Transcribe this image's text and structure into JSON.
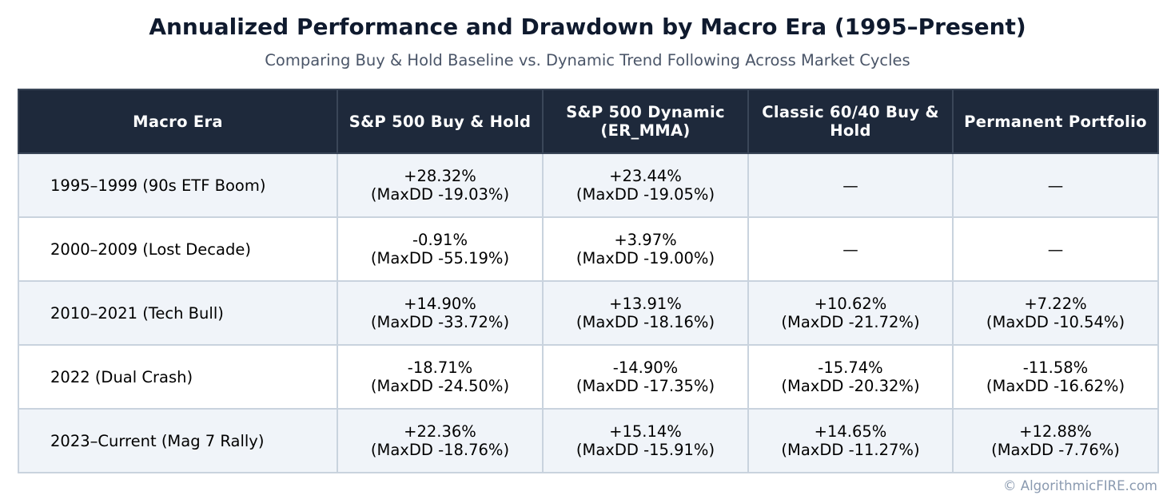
{
  "colors": {
    "header_bg": "#1e293b",
    "header_text": "#ffffff",
    "row_alt_bg": "#f0f4f9",
    "border": "#c9d3de",
    "title": "#0f1a2e",
    "subtitle": "#4a5568",
    "footer": "#8a9ab0"
  },
  "chart_data": {
    "type": "table",
    "title": "Annualized Performance and Drawdown by Macro Era (1995–Present)",
    "subtitle": "Comparing Buy & Hold Baseline vs. Dynamic Trend Following Across Market Cycles",
    "columns": [
      "Macro Era",
      "S&P 500 Buy & Hold",
      "S&P 500 Dynamic (ER_MMA)",
      "Classic 60/40 Buy & Hold",
      "Permanent Portfolio"
    ],
    "rows": [
      {
        "era": "1995–1999 (90s ETF Boom)",
        "cells": [
          {
            "ret": "+28.32%",
            "dd": "(MaxDD -19.03%)"
          },
          {
            "ret": "+23.44%",
            "dd": "(MaxDD -19.05%)"
          },
          {
            "ret": "—",
            "dd": ""
          },
          {
            "ret": "—",
            "dd": ""
          }
        ]
      },
      {
        "era": "2000–2009 (Lost Decade)",
        "cells": [
          {
            "ret": "-0.91%",
            "dd": "(MaxDD -55.19%)"
          },
          {
            "ret": "+3.97%",
            "dd": "(MaxDD -19.00%)"
          },
          {
            "ret": "—",
            "dd": ""
          },
          {
            "ret": "—",
            "dd": ""
          }
        ]
      },
      {
        "era": "2010–2021 (Tech Bull)",
        "cells": [
          {
            "ret": "+14.90%",
            "dd": "(MaxDD -33.72%)"
          },
          {
            "ret": "+13.91%",
            "dd": "(MaxDD -18.16%)"
          },
          {
            "ret": "+10.62%",
            "dd": "(MaxDD -21.72%)"
          },
          {
            "ret": "+7.22%",
            "dd": "(MaxDD -10.54%)"
          }
        ]
      },
      {
        "era": "2022 (Dual Crash)",
        "cells": [
          {
            "ret": "-18.71%",
            "dd": "(MaxDD -24.50%)"
          },
          {
            "ret": "-14.90%",
            "dd": "(MaxDD -17.35%)"
          },
          {
            "ret": "-15.74%",
            "dd": "(MaxDD -20.32%)"
          },
          {
            "ret": "-11.58%",
            "dd": "(MaxDD -16.62%)"
          }
        ]
      },
      {
        "era": "2023–Current (Mag 7 Rally)",
        "cells": [
          {
            "ret": "+22.36%",
            "dd": "(MaxDD -18.76%)"
          },
          {
            "ret": "+15.14%",
            "dd": "(MaxDD -15.91%)"
          },
          {
            "ret": "+14.65%",
            "dd": "(MaxDD -11.27%)"
          },
          {
            "ret": "+12.88%",
            "dd": "(MaxDD -7.76%)"
          }
        ]
      }
    ]
  },
  "footer": "© AlgorithmicFIRE.com"
}
